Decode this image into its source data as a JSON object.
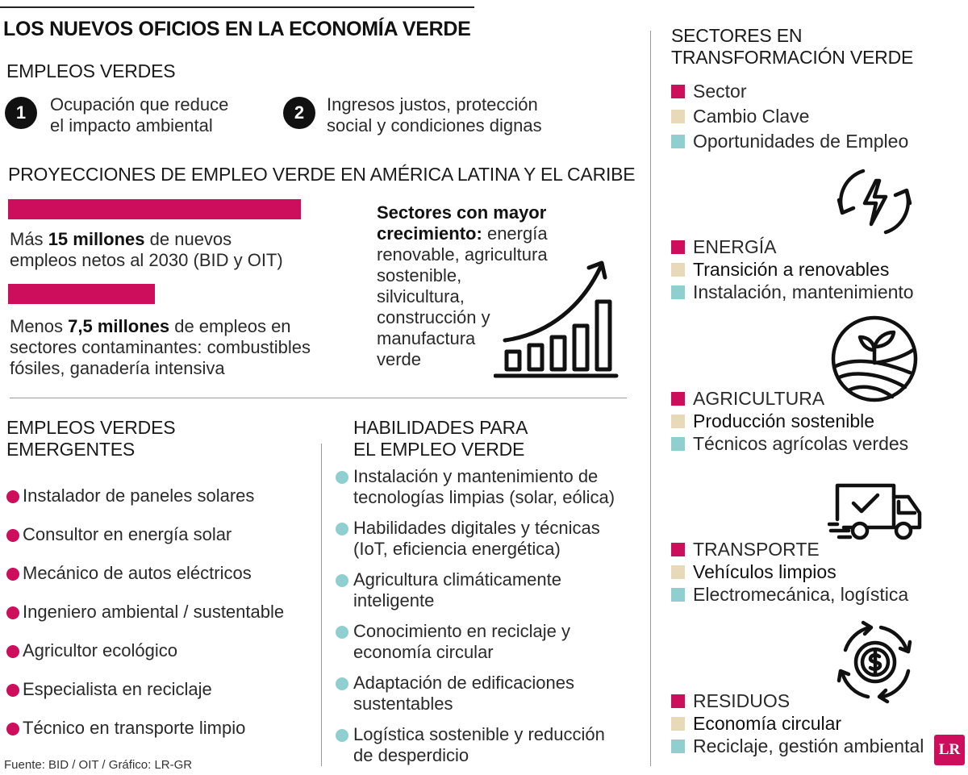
{
  "title": "LOS NUEVOS OFICIOS EN LA ECONOMÍA VERDE",
  "empleos_verdes": {
    "heading": "EMPLEOS VERDES",
    "items": [
      {
        "num": "1",
        "line1": "Ocupación que reduce",
        "line2": "el impacto ambiental"
      },
      {
        "num": "2",
        "line1": "Ingresos justos, protección",
        "line2": "social y condiciones dignas"
      }
    ]
  },
  "proyecciones": {
    "heading": "PROYECCIONES DE EMPLEO VERDE EN AMÉRICA LATINA Y EL CARIBE",
    "bars": [
      {
        "value_millions": 15,
        "pre": "Más ",
        "bold": "15 millones",
        "post": " de nuevos",
        "line2": "empleos netos al 2030 (BID y OIT)"
      },
      {
        "value_millions": 7.5,
        "pre": "Menos ",
        "bold": "7,5 millones",
        "post": " de empleos en",
        "line2": "sectores contaminantes: combustibles",
        "line3": "fósiles, ganadería intensiva"
      }
    ],
    "sectores_bold1": "Sectores con mayor",
    "sectores_bold2": "crecimiento:",
    "sectores_lines": [
      "energía",
      "renovable, agricultura",
      "sostenible,",
      "silvicultura,",
      "construcción y",
      "manufactura",
      "verde"
    ]
  },
  "emergentes": {
    "heading1": "EMPLEOS VERDES",
    "heading2": "EMERGENTES",
    "items": [
      "Instalador de paneles solares",
      "Consultor en energía solar",
      "Mecánico de autos eléctricos",
      "Ingeniero ambiental / sustentable",
      "Agricultor ecológico",
      "Especialista en reciclaje",
      "Técnico en transporte limpio"
    ]
  },
  "habilidades": {
    "heading1": "HABILIDADES PARA",
    "heading2": "EL EMPLEO VERDE",
    "items": [
      {
        "l1": "Instalación y mantenimiento de",
        "l2": "tecnologías limpias (solar, eólica)"
      },
      {
        "l1": "Habilidades digitales y técnicas",
        "l2": "(IoT, eficiencia energética)"
      },
      {
        "l1": "Agricultura climáticamente",
        "l2": "inteligente"
      },
      {
        "l1": "Conocimiento en reciclaje y",
        "l2": "economía circular"
      },
      {
        "l1": "Adaptación de edificaciones",
        "l2": "sustentables"
      },
      {
        "l1": "Logística sostenible y reducción",
        "l2": "de desperdicio"
      }
    ]
  },
  "sectores": {
    "heading1": "SECTORES EN",
    "heading2": "TRANSFORMACIÓN VERDE",
    "legend": [
      "Sector",
      "Cambio Clave",
      "Oportunidades de Empleo"
    ],
    "items": [
      {
        "icon": "energy-cycle-icon",
        "sector": "ENERGÍA",
        "cambio": "Transición a renovables",
        "oportunidades": "Instalación, mantenimiento"
      },
      {
        "icon": "sprout-field-icon",
        "sector": "AGRICULTURA",
        "cambio": "Producción sostenible",
        "oportunidades": "Técnicos agrícolas verdes"
      },
      {
        "icon": "delivery-truck-icon",
        "sector": "TRANSPORTE",
        "cambio": "Vehículos limpios",
        "oportunidades": "Electromecánica, logística"
      },
      {
        "icon": "money-recycle-icon",
        "sector": "RESIDUOS",
        "cambio": "Economía circular",
        "oportunidades": "Reciclaje, gestión ambiental"
      }
    ]
  },
  "footer": "Fuente: BID / OIT / Gráfico: LR-GR",
  "logo": "LR",
  "colors": {
    "accent": "#cc0e5c",
    "beige": "#e8d9b8",
    "teal": "#8fcfcf"
  }
}
